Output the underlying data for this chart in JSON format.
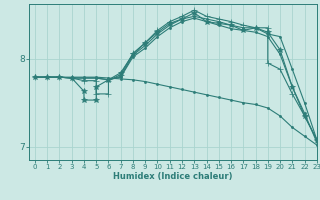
{
  "xlabel": "Humidex (Indice chaleur)",
  "background_color": "#cce8e4",
  "line_color": "#2d7d78",
  "grid_color": "#aad4cf",
  "xlim": [
    -0.5,
    23
  ],
  "ylim": [
    6.85,
    8.62
  ],
  "xticks": [
    0,
    1,
    2,
    3,
    4,
    5,
    6,
    7,
    8,
    9,
    10,
    11,
    12,
    13,
    14,
    15,
    16,
    17,
    18,
    19,
    20,
    21,
    22,
    23
  ],
  "yticks": [
    7,
    8
  ],
  "lines": [
    {
      "x": [
        0,
        1,
        2,
        3,
        4,
        4,
        5,
        5,
        6,
        7,
        8,
        9,
        10,
        11,
        12,
        13,
        14,
        15,
        16,
        17,
        18,
        19,
        20,
        21,
        22,
        23
      ],
      "y": [
        7.79,
        7.79,
        7.79,
        7.78,
        7.63,
        7.53,
        7.53,
        7.68,
        7.76,
        7.84,
        8.05,
        8.18,
        8.3,
        8.4,
        8.45,
        8.52,
        8.42,
        8.4,
        8.38,
        8.32,
        8.35,
        8.3,
        8.1,
        7.68,
        7.35,
        7.08
      ],
      "marker": "*",
      "ms": 4
    },
    {
      "x": [
        0,
        1,
        2,
        3,
        4,
        5,
        5,
        6,
        6,
        7,
        8,
        9,
        10,
        11,
        12,
        13,
        14,
        15,
        16,
        17,
        18,
        19,
        19,
        20,
        21,
        22,
        23
      ],
      "y": [
        7.79,
        7.79,
        7.79,
        7.78,
        7.75,
        7.75,
        7.6,
        7.6,
        7.75,
        7.82,
        8.06,
        8.18,
        8.32,
        8.42,
        8.48,
        8.55,
        8.48,
        8.45,
        8.42,
        8.38,
        8.35,
        8.35,
        7.95,
        7.88,
        7.6,
        7.35,
        7.08
      ],
      "marker": "+",
      "ms": 4
    },
    {
      "x": [
        0,
        1,
        2,
        3,
        4,
        5,
        6,
        7,
        8,
        9,
        10,
        11,
        12,
        13,
        14,
        15,
        16,
        17,
        18,
        19,
        20,
        21,
        22,
        23
      ],
      "y": [
        7.79,
        7.79,
        7.79,
        7.78,
        7.78,
        7.78,
        7.76,
        7.8,
        8.04,
        8.15,
        8.28,
        8.38,
        8.45,
        8.48,
        8.45,
        8.42,
        8.38,
        8.35,
        8.35,
        8.28,
        8.25,
        7.88,
        7.5,
        7.08
      ],
      "marker": ".",
      "ms": 3
    },
    {
      "x": [
        0,
        1,
        2,
        3,
        4,
        5,
        6,
        7,
        8,
        9,
        10,
        11,
        12,
        13,
        14,
        15,
        16,
        17,
        18,
        19,
        20,
        21,
        22,
        23
      ],
      "y": [
        7.79,
        7.79,
        7.79,
        7.78,
        7.78,
        7.78,
        7.76,
        7.79,
        8.02,
        8.12,
        8.25,
        8.35,
        8.42,
        8.46,
        8.42,
        8.38,
        8.34,
        8.32,
        8.3,
        8.25,
        8.05,
        7.68,
        7.38,
        7.05
      ],
      "marker": ".",
      "ms": 3
    },
    {
      "x": [
        0,
        1,
        2,
        3,
        4,
        5,
        6,
        7,
        8,
        9,
        10,
        11,
        12,
        13,
        14,
        15,
        16,
        17,
        18,
        19,
        20,
        21,
        22,
        23
      ],
      "y": [
        7.79,
        7.79,
        7.79,
        7.79,
        7.79,
        7.79,
        7.78,
        7.77,
        7.76,
        7.74,
        7.71,
        7.68,
        7.65,
        7.62,
        7.59,
        7.56,
        7.53,
        7.5,
        7.48,
        7.44,
        7.35,
        7.22,
        7.12,
        7.02
      ],
      "marker": ".",
      "ms": 3
    }
  ]
}
